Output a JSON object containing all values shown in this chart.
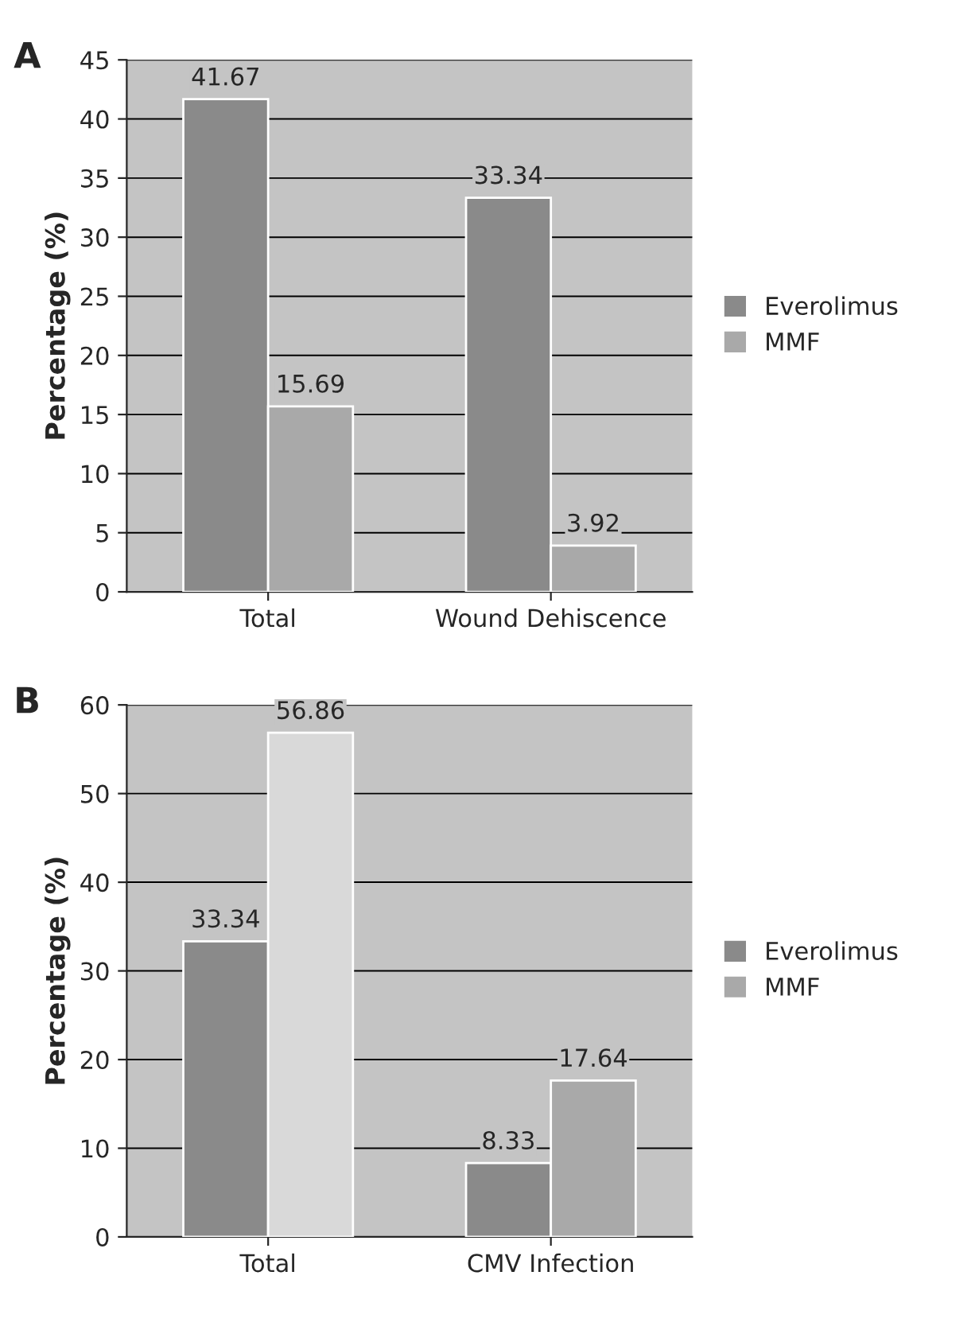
{
  "chart_data": [
    {
      "type": "bar",
      "title": "A",
      "ylabel": "Percentage (%)",
      "categories": [
        "Total",
        "Wound Dehiscence"
      ],
      "series": [
        {
          "name": "Everolimus",
          "color": "#8a8a8a",
          "values": [
            41.67,
            33.34
          ]
        },
        {
          "name": "MMF",
          "color": "#a9a9a9",
          "values": [
            15.69,
            3.92
          ]
        }
      ],
      "ylim": [
        0,
        45
      ],
      "yticks": [
        0,
        5,
        10,
        15,
        20,
        25,
        30,
        35,
        40,
        45
      ],
      "grid": "y",
      "legend": "right",
      "data_labels": true
    },
    {
      "type": "bar",
      "title": "B",
      "ylabel": "Percentage (%)",
      "categories": [
        "Total",
        "CMV Infection"
      ],
      "series": [
        {
          "name": "Everolimus",
          "color": "#8a8a8a",
          "values": [
            33.34,
            8.33
          ]
        },
        {
          "name": "MMF",
          "color": "#a9a9a9",
          "colors": [
            "#d9d9d9",
            "#a9a9a9"
          ],
          "values": [
            56.86,
            17.64
          ]
        }
      ],
      "ylim": [
        0,
        60
      ],
      "yticks": [
        0,
        10,
        20,
        30,
        40,
        50,
        60
      ],
      "grid": "y",
      "legend": "right",
      "data_labels": true
    }
  ]
}
